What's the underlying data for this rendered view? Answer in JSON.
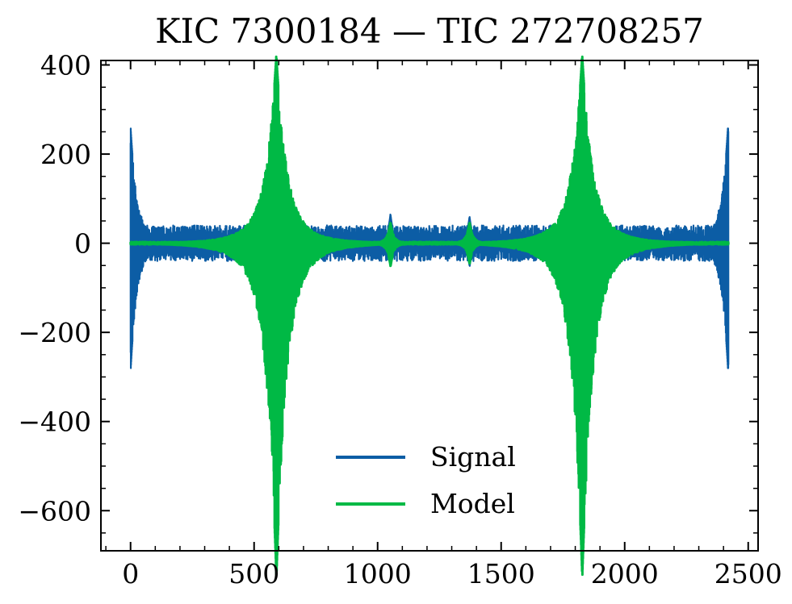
{
  "chart_data": {
    "type": "line",
    "title": "KIC 7300184 — TIC 272708257",
    "xlabel": "",
    "ylabel": "",
    "xlim": [
      -120,
      2540
    ],
    "ylim": [
      -690,
      410
    ],
    "x_ticks": [
      0,
      500,
      1000,
      1500,
      2000,
      2500
    ],
    "x_tick_labels": [
      "0",
      "500",
      "1000",
      "1500",
      "2000",
      "2500"
    ],
    "y_ticks": [
      400,
      200,
      0,
      -200,
      -400,
      -600
    ],
    "y_tick_labels": [
      "400",
      "200",
      "0",
      "−200",
      "−400",
      "−600"
    ],
    "grid": false,
    "legend_position": "lower-center",
    "x_range": [
      0,
      2420
    ],
    "series": [
      {
        "name": "Signal",
        "color": "#0C5DA5",
        "baseline_noise_amplitude": 40,
        "spikes": [
          {
            "x": 0,
            "max": 225,
            "min": -245
          },
          {
            "x": 590,
            "max": 290,
            "min": -260
          },
          {
            "x": 1052,
            "max": 57,
            "min": -45
          },
          {
            "x": 1372,
            "max": 52,
            "min": -45
          },
          {
            "x": 1828,
            "max": 290,
            "min": -260
          },
          {
            "x": 2418,
            "max": 225,
            "min": -245
          }
        ]
      },
      {
        "name": "Model",
        "color": "#00B945",
        "baseline_noise_amplitude": 3,
        "spikes": [
          {
            "x": 590,
            "max": 360,
            "min": -640
          },
          {
            "x": 1052,
            "max": 40,
            "min": -45
          },
          {
            "x": 1372,
            "max": 40,
            "min": -40
          },
          {
            "x": 1828,
            "max": 360,
            "min": -640
          }
        ]
      }
    ]
  }
}
